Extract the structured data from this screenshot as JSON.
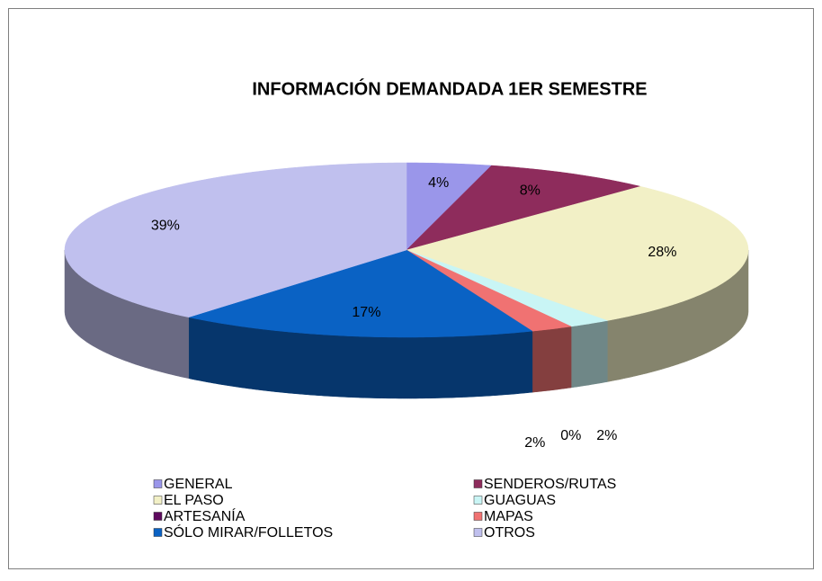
{
  "chart_data": {
    "type": "pie",
    "title": "INFORMACIÓN DEMANDADA 1ER SEMESTRE",
    "categories": [
      "GENERAL",
      "SENDEROS/RUTAS",
      "EL PASO",
      "GUAGUAS",
      "ARTESANÍA",
      "MAPAS",
      "SÓLO MIRAR/FOLLETOS",
      "OTROS"
    ],
    "values": [
      4,
      8,
      28,
      2,
      0,
      2,
      17,
      39
    ],
    "value_labels": [
      "4%",
      "8%",
      "28%",
      "2%",
      "0%",
      "2%",
      "17%",
      "39%"
    ],
    "colors": [
      "#9a96ea",
      "#8e2c5c",
      "#f2f0c6",
      "#c9f5f5",
      "#5e0a5e",
      "#f07272",
      "#0a62c4",
      "#c0c0ee"
    ],
    "legend": "bottom"
  }
}
